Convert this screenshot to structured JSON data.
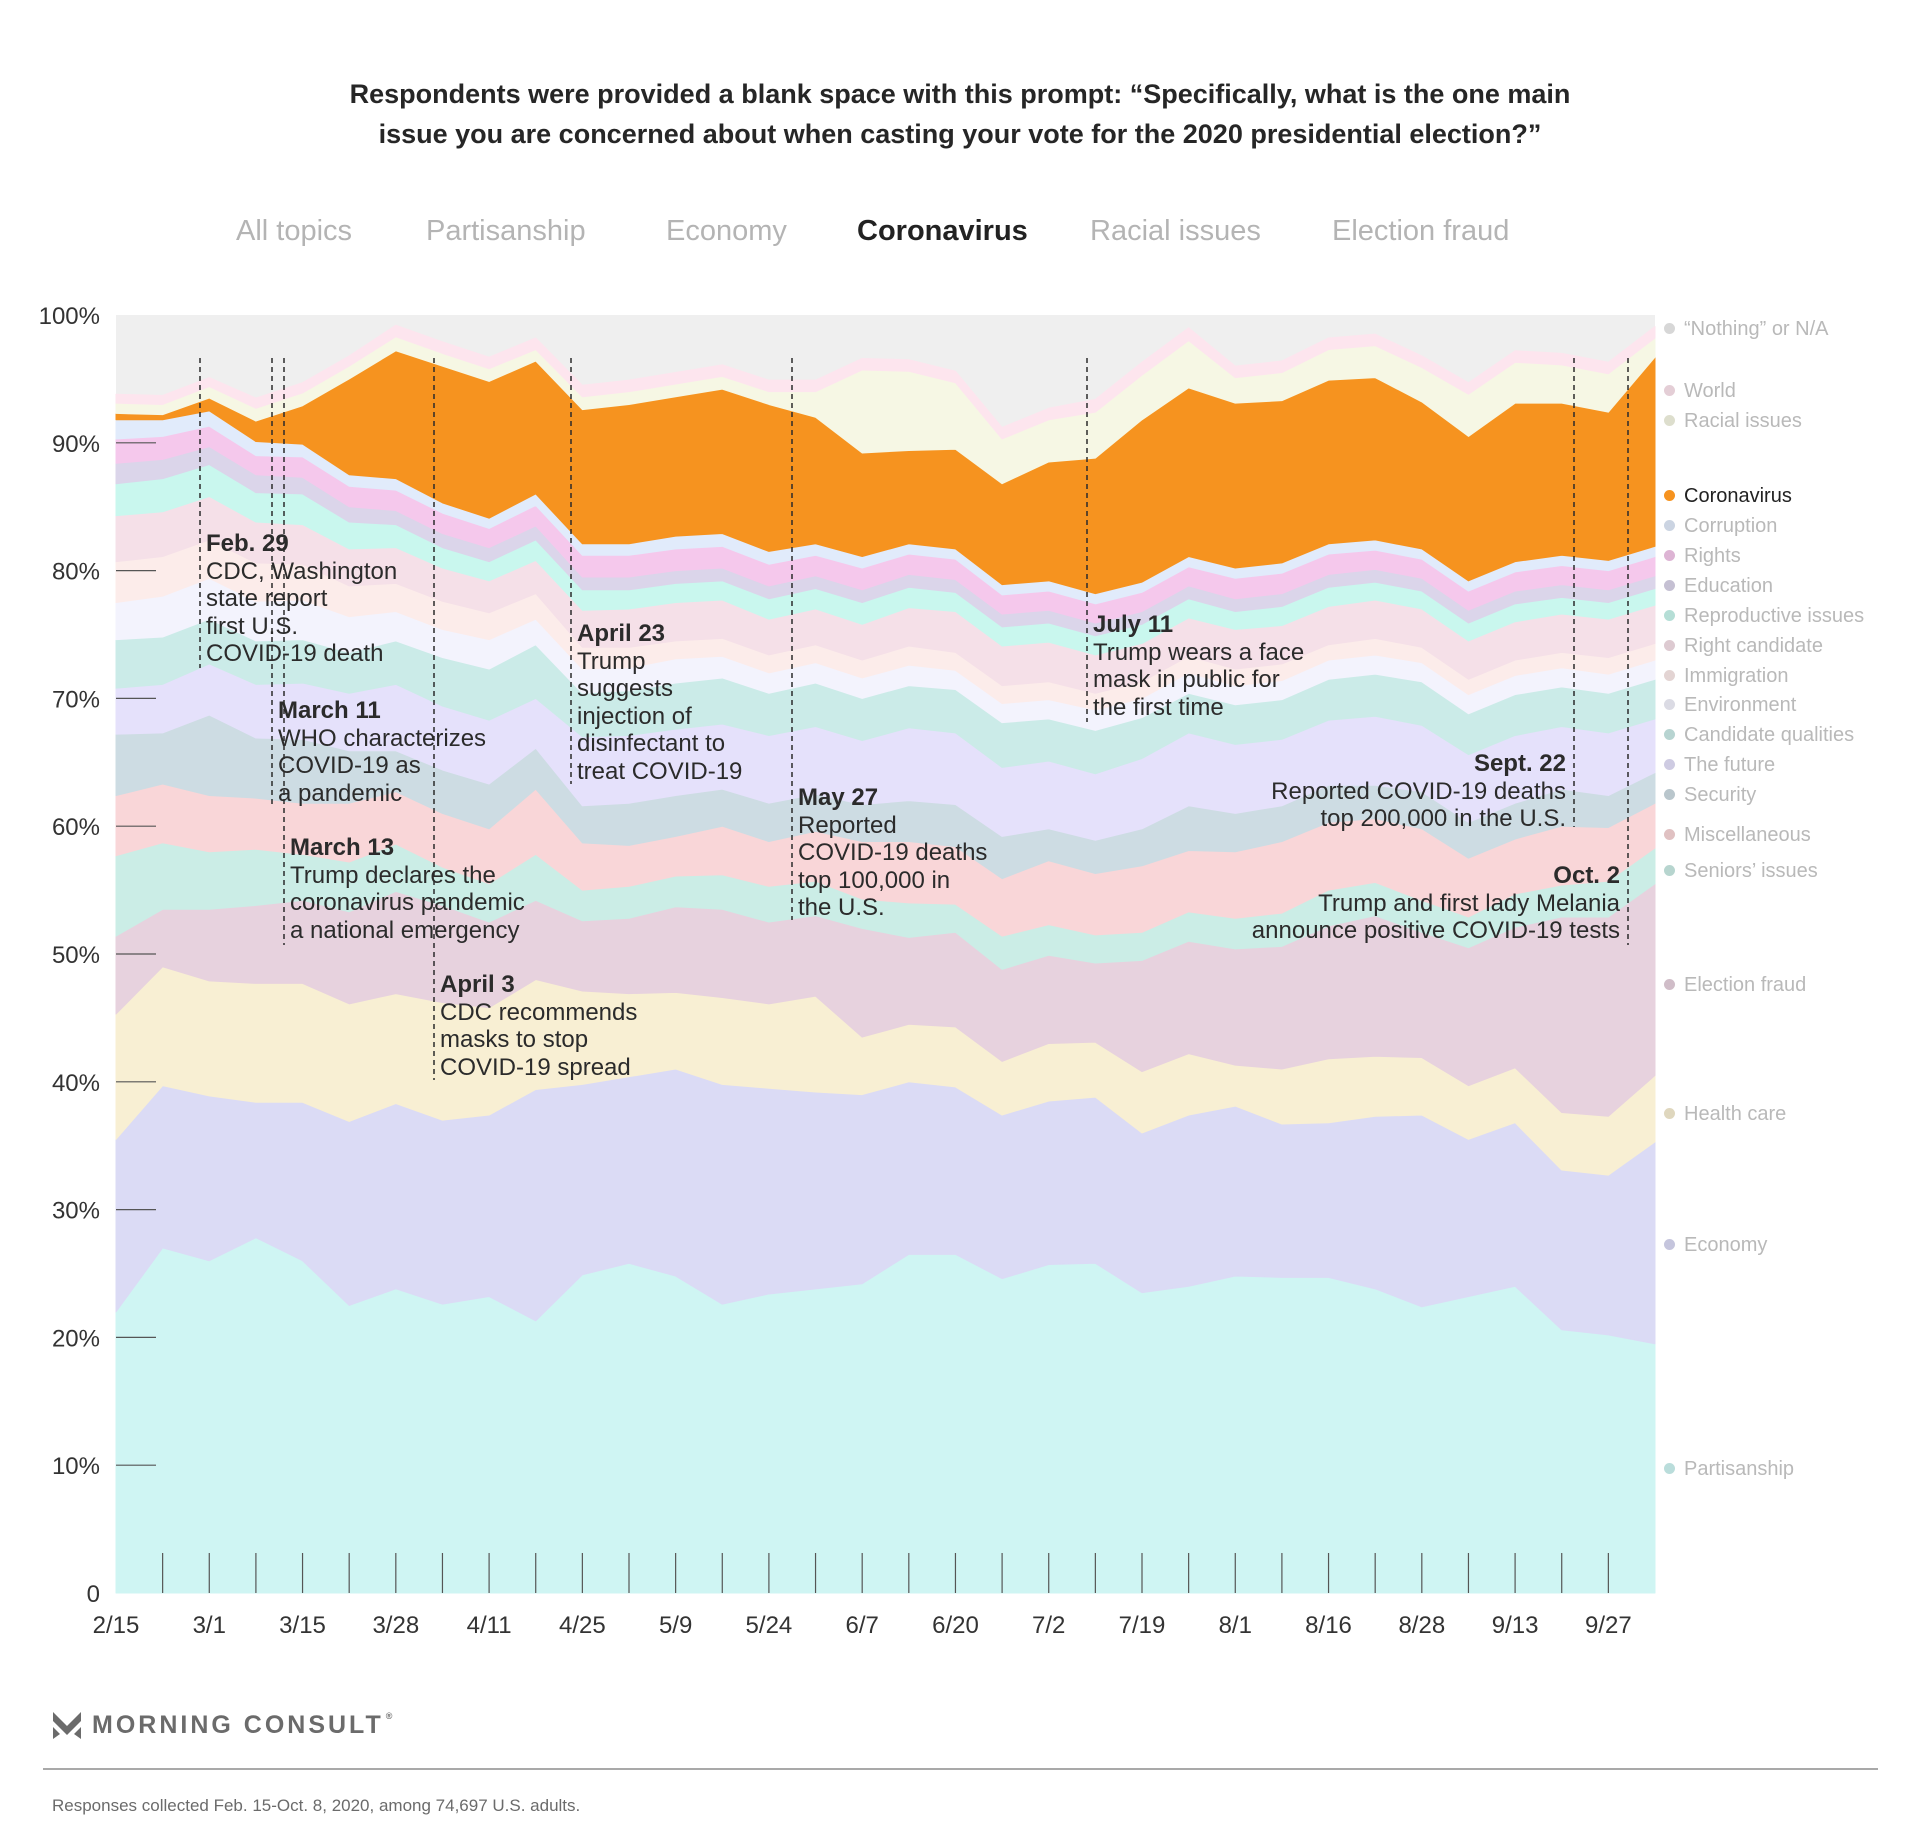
{
  "title": {
    "line1": "Respondents were provided a blank space with this prompt: “Specifically, what is the one main",
    "line2": "issue you are concerned about when casting your vote for the 2020 presidential election?”"
  },
  "tabs": [
    {
      "label": "All topics",
      "active": false
    },
    {
      "label": "Partisanship",
      "active": false
    },
    {
      "label": "Economy",
      "active": false
    },
    {
      "label": "Coronavirus",
      "active": true
    },
    {
      "label": "Racial issues",
      "active": false
    },
    {
      "label": "Election fraud",
      "active": false
    }
  ],
  "footer": {
    "brand": "MORNING CONSULT",
    "brand_mark": "®",
    "note": "Responses collected Feb. 15-Oct. 8, 2020, among 74,697 U.S. adults."
  },
  "chart_data": {
    "type": "area",
    "stacked": true,
    "title": "Respondents were provided a blank space with this prompt: “Specifically, what is the one main issue you are concerned about when casting your vote for the 2020 presidential election?”",
    "xlabel": "",
    "ylabel": "",
    "ylim": [
      0,
      100
    ],
    "y_ticks": [
      "0",
      "10%",
      "20%",
      "30%",
      "40%",
      "50%",
      "60%",
      "70%",
      "80%",
      "90%",
      "100%"
    ],
    "x_tick_labels": [
      "2/15",
      "3/1",
      "3/15",
      "3/28",
      "4/11",
      "4/25",
      "5/9",
      "5/24",
      "6/7",
      "6/20",
      "7/2",
      "7/19",
      "8/1",
      "8/16",
      "8/28",
      "9/13",
      "9/27"
    ],
    "x_samples": 34,
    "highlighted_series": "Coronavirus",
    "legend_position": "right",
    "series": [
      {
        "name": "Partisanship",
        "color": "#cff5f3",
        "values": [
          22,
          27,
          26,
          27.8,
          26,
          22.5,
          23.8,
          22.6,
          23.2,
          21.3,
          24.9,
          25.8,
          24.8,
          22.6,
          23.4,
          23.8,
          24.2,
          26.5,
          26.5,
          24.6,
          25.7,
          25.8,
          23.5,
          24,
          24.8,
          24.7,
          24.7,
          23.8,
          22.4,
          23.2,
          24,
          20.6,
          20.2,
          19.5
        ]
      },
      {
        "name": "Economy",
        "color": "#dbdbf5",
        "values": [
          13.5,
          12.7,
          12.9,
          10.6,
          12.4,
          14.4,
          14.5,
          14.4,
          14.2,
          18.1,
          14.9,
          14.6,
          16.2,
          17.2,
          16.1,
          15.4,
          14.8,
          13.5,
          13.1,
          12.8,
          12.8,
          13,
          12.5,
          13.4,
          13.3,
          12,
          12.1,
          13.5,
          15,
          12.3,
          12.8,
          12.5,
          12.5,
          15.8
        ]
      },
      {
        "name": "Health care",
        "color": "#f8efd3",
        "values": [
          9.8,
          9.3,
          9,
          9.3,
          9.3,
          9.2,
          8.6,
          9.2,
          8.4,
          8.6,
          7.3,
          6.5,
          6,
          6.8,
          6.6,
          7.5,
          4.5,
          4.5,
          4.7,
          4.2,
          4.5,
          4.3,
          4.8,
          4.8,
          3.2,
          4.3,
          5,
          4.7,
          4.5,
          4.2,
          4.3,
          4.5,
          4.6,
          5.2
        ]
      },
      {
        "name": "Election fraud",
        "color": "#e7d2de",
        "values": [
          6.1,
          4.5,
          5.6,
          6.1,
          6.5,
          7.2,
          8,
          7.6,
          6.7,
          6.2,
          5.5,
          5.9,
          6.7,
          6.9,
          6.4,
          6.3,
          8.5,
          6.8,
          7.4,
          7.2,
          6.9,
          6.2,
          8.7,
          8.8,
          9.1,
          9.6,
          10.4,
          11,
          9.8,
          10.8,
          11,
          15.3,
          15.6,
          15
        ]
      },
      {
        "name": "Seniors’ issues",
        "color": "#cbede6",
        "values": [
          6.3,
          5.2,
          4.5,
          4.4,
          3.6,
          3.9,
          3.7,
          3,
          3,
          3.6,
          2.4,
          2.5,
          2.4,
          2.7,
          2.8,
          2.7,
          2.3,
          2.7,
          2.2,
          2.6,
          2.4,
          2.2,
          2.2,
          2.3,
          2.4,
          2.6,
          2.8,
          2.6,
          2.5,
          2.4,
          2.6,
          2.5,
          2.8,
          2.8
        ]
      },
      {
        "name": "Miscellaneous",
        "color": "#f9d6d8",
        "values": [
          4.7,
          4.6,
          4.4,
          4,
          4,
          4.6,
          4.1,
          4.2,
          4.3,
          5.1,
          3.7,
          3.2,
          3.1,
          3.8,
          3.5,
          3.9,
          4.5,
          4.8,
          4.5,
          4.5,
          5,
          4.8,
          5.2,
          4.8,
          5.2,
          5.6,
          5.3,
          5,
          5.6,
          4.6,
          4.3,
          4.6,
          4.2,
          3.5
        ]
      },
      {
        "name": "Security",
        "color": "#cddce3",
        "values": [
          4.8,
          4,
          6.3,
          4.7,
          5,
          4.1,
          3.2,
          3.4,
          3.5,
          3.2,
          2.9,
          3.3,
          3.2,
          2.9,
          3,
          2.9,
          2.9,
          3.2,
          3.3,
          3.3,
          2.5,
          2.6,
          2.9,
          3.5,
          3,
          2.8,
          2.9,
          2.6,
          2.9,
          2.8,
          2.8,
          2.9,
          2.5,
          2.4
        ]
      },
      {
        "name": "The future",
        "color": "#e5e1fb",
        "values": [
          3.6,
          3.8,
          4,
          4.2,
          4.4,
          4.5,
          5.2,
          5,
          5,
          3.9,
          5.4,
          5.3,
          5.2,
          5.1,
          5.3,
          5.3,
          5,
          5.7,
          5.6,
          5.4,
          5.3,
          5.2,
          5.5,
          5.7,
          5.4,
          5.2,
          5.1,
          5.4,
          5.2,
          5.3,
          5.3,
          4.9,
          4.9,
          4.2
        ]
      },
      {
        "name": "Candidate qualities",
        "color": "#cbebe8",
        "values": [
          3.8,
          3.7,
          3.5,
          3.4,
          3.4,
          3.2,
          3.4,
          3.8,
          4,
          4.2,
          3.4,
          3.5,
          3.6,
          3.6,
          3.3,
          3.4,
          3.3,
          3.3,
          3.4,
          3.5,
          3.3,
          3.4,
          3.2,
          3.1,
          3.1,
          3.1,
          3.2,
          3.3,
          3.4,
          3.2,
          3.2,
          3.1,
          3.1,
          3.1
        ]
      },
      {
        "name": "Environment",
        "color": "#f3f3fd",
        "values": [
          2.9,
          3.2,
          3.2,
          3.1,
          3.1,
          2.8,
          2.3,
          2.2,
          2.3,
          2,
          1.9,
          1.8,
          1.9,
          1.7,
          1.6,
          1.6,
          1.6,
          1.6,
          1.5,
          1.5,
          1.5,
          1.6,
          1.5,
          1.6,
          1.5,
          1.5,
          1.5,
          1.5,
          1.5,
          1.5,
          1.5,
          1.5,
          1.5,
          1.5
        ]
      },
      {
        "name": "Immigration",
        "color": "#fcecea",
        "values": [
          3.2,
          3.1,
          3,
          3,
          2.8,
          2.4,
          2.2,
          2.2,
          2.1,
          2,
          1.7,
          1.6,
          1.4,
          1.4,
          1.4,
          1.4,
          1.4,
          1.5,
          1.4,
          1.4,
          1.4,
          1.3,
          1.3,
          1.3,
          1.3,
          1.3,
          1.2,
          1.3,
          1.2,
          1.2,
          1.2,
          1.2,
          1.3,
          1.3
        ]
      },
      {
        "name": "Right candidate",
        "color": "#f5e0e8",
        "values": [
          3.6,
          3.5,
          3.4,
          3.2,
          3.1,
          2.9,
          2.8,
          2.6,
          2.5,
          2.6,
          2.9,
          3,
          3,
          3,
          2.8,
          2.8,
          2.8,
          3,
          3.2,
          3.1,
          3.1,
          3,
          3,
          3,
          3.1,
          3,
          3,
          3,
          3,
          3,
          3,
          3,
          3,
          3
        ]
      },
      {
        "name": "Reproductive issues",
        "color": "#c9f7ee",
        "values": [
          2.5,
          2.6,
          2.5,
          2.3,
          2.4,
          2.1,
          1.8,
          1.6,
          1.5,
          1.6,
          1.6,
          1.5,
          1.5,
          1.5,
          1.6,
          1.6,
          1.7,
          1.6,
          1.5,
          1.5,
          1.5,
          1.5,
          1.5,
          1.5,
          1.4,
          1.5,
          1.5,
          1.4,
          1.4,
          1.4,
          1.4,
          1.3,
          1.3,
          1.3
        ]
      },
      {
        "name": "Education",
        "color": "#dbd5ea",
        "values": [
          1.6,
          1.5,
          1.4,
          1.4,
          1.3,
          1.2,
          1.1,
          1.1,
          1.1,
          1.1,
          1,
          1,
          1,
          1,
          1,
          1,
          1,
          1,
          1,
          1,
          1,
          1,
          1,
          1,
          1,
          1,
          1,
          1,
          1,
          1,
          1,
          1,
          1,
          1
        ]
      },
      {
        "name": "Rights",
        "color": "#f5c8ec",
        "values": [
          1.9,
          1.8,
          1.6,
          1.5,
          1.6,
          1.6,
          1.6,
          1.6,
          1.5,
          1.6,
          1.7,
          1.7,
          1.7,
          1.7,
          1.7,
          1.6,
          1.7,
          1.6,
          1.6,
          1.5,
          1.5,
          1.5,
          1.5,
          1.5,
          1.6,
          1.6,
          1.6,
          1.5,
          1.5,
          1.5,
          1.5,
          1.5,
          1.5,
          1.5
        ]
      },
      {
        "name": "Corruption",
        "color": "#e1ebfb",
        "values": [
          1.5,
          1.3,
          1.2,
          1.1,
          1,
          0.9,
          0.9,
          0.8,
          0.8,
          0.9,
          0.9,
          0.9,
          1,
          1,
          1,
          0.9,
          0.9,
          0.8,
          0.8,
          0.8,
          0.8,
          0.8,
          0.8,
          0.8,
          0.8,
          0.8,
          0.8,
          0.8,
          0.8,
          0.8,
          0.8,
          0.8,
          0.8,
          0.8
        ]
      },
      {
        "name": "Coronavirus",
        "color": "#f6931f",
        "values": [
          0.5,
          0.4,
          1,
          1.6,
          3,
          7.5,
          10,
          10.7,
          10.7,
          10.4,
          10.5,
          10.9,
          10.9,
          11.3,
          11.5,
          9.9,
          8.1,
          7.3,
          7.8,
          7.9,
          9.3,
          10.6,
          12.7,
          13.2,
          12.9,
          12.7,
          12.8,
          12.7,
          11.5,
          11.3,
          12.4,
          11.9,
          11.6,
          14.8
        ]
      },
      {
        "name": "Racial issues",
        "color": "#f6f7e4",
        "values": [
          0.8,
          0.8,
          0.9,
          1,
          1,
          1,
          1.1,
          1,
          1,
          0.9,
          1,
          1,
          1,
          1,
          1,
          2,
          6.5,
          6.2,
          5.2,
          3.5,
          3.3,
          3.6,
          3.5,
          3.7,
          2,
          2.2,
          2.4,
          2.5,
          2.7,
          3.3,
          3.2,
          3,
          3,
          1.5
        ]
      },
      {
        "name": "World",
        "color": "#fde5ee",
        "values": [
          0.7,
          0.7,
          0.7,
          0.8,
          0.8,
          0.8,
          0.9,
          0.9,
          0.9,
          0.9,
          0.9,
          0.9,
          0.9,
          0.9,
          0.9,
          0.9,
          0.9,
          0.9,
          0.9,
          0.9,
          0.9,
          1,
          1,
          1,
          0.9,
          0.9,
          0.9,
          0.9,
          0.9,
          0.9,
          0.9,
          0.9,
          0.9,
          0.9
        ]
      },
      {
        "name": "“Nothing” or N/A",
        "color": "#efefef",
        "values": "remainder"
      }
    ],
    "annotations": [
      {
        "date": "Feb. 29",
        "text": [
          "CDC, Washington",
          "state report",
          "first U.S.",
          "COVID-19 death"
        ]
      },
      {
        "date": "March 11",
        "text": [
          "WHO characterizes",
          "COVID-19 as",
          "a pandemic"
        ]
      },
      {
        "date": "March 13",
        "text": [
          "Trump declares the",
          "coronavirus pandemic",
          "a national emergency"
        ]
      },
      {
        "date": "April 3",
        "text": [
          "CDC recommends",
          "masks to stop",
          "COVID-19 spread"
        ]
      },
      {
        "date": "April 23",
        "text": [
          "Trump",
          "suggests",
          "injection of",
          "disinfectant to",
          "treat COVID-19"
        ]
      },
      {
        "date": "May 27",
        "text": [
          "Reported",
          "COVID-19 deaths",
          "top 100,000 in",
          "the U.S."
        ]
      },
      {
        "date": "July 11",
        "text": [
          "Trump wears a face",
          "mask in public for",
          "the first time"
        ]
      },
      {
        "date": "Sept. 22",
        "text": [
          "Reported COVID-19 deaths",
          "top 200,000 in the U.S."
        ]
      },
      {
        "date": "Oct. 2",
        "text": [
          "Trump and first lady Melania",
          "announce positive COVID-19 tests"
        ]
      }
    ]
  }
}
